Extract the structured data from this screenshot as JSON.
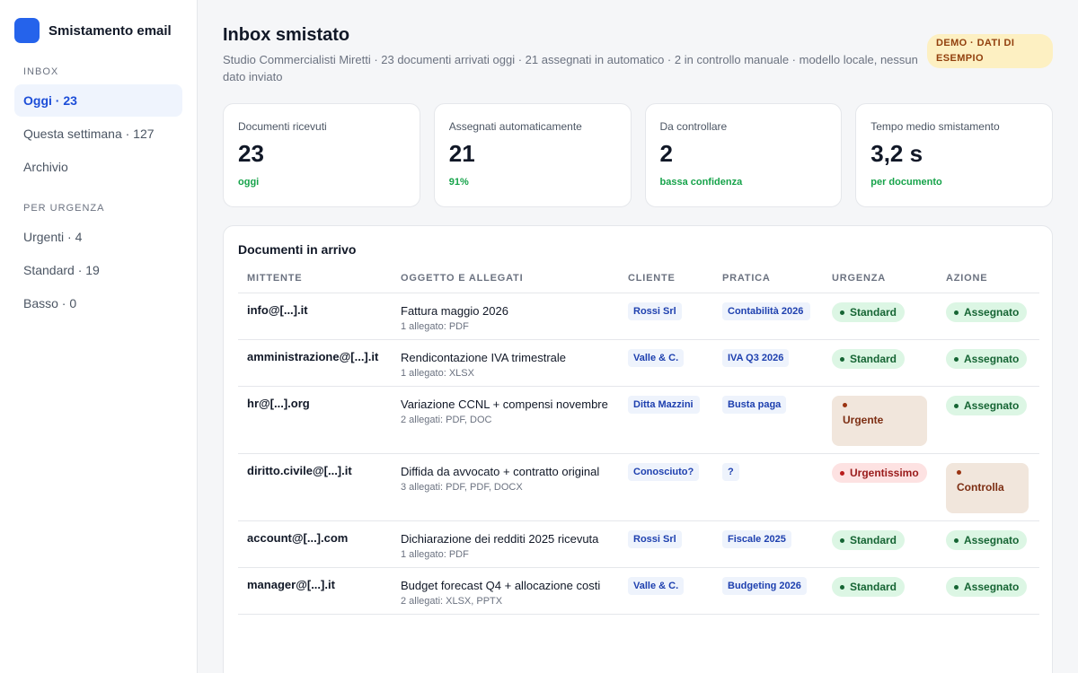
{
  "sidebar": {
    "brand": "Smistamento email",
    "section_inbox": "INBOX",
    "inbox_items": [
      {
        "label": "Oggi · 23"
      },
      {
        "label": "Questa settimana · 127"
      },
      {
        "label": "Archivio"
      }
    ],
    "section_urgency": "PER URGENZA",
    "urgency_items": [
      {
        "label": "Urgenti · 4"
      },
      {
        "label": "Standard · 19"
      },
      {
        "label": "Basso · 0"
      }
    ]
  },
  "header": {
    "title": "Inbox smistato",
    "subtitle": "Studio Commercialisti Miretti · 23 documenti arrivati oggi · 21 assegnati in automatico · 2 in controllo manuale · modello locale, nessun dato inviato",
    "badge": "DEMO · DATI DI ESEMPIO"
  },
  "stats": [
    {
      "label": "Documenti ricevuti",
      "value": "23",
      "note": "oggi"
    },
    {
      "label": "Assegnati automaticamente",
      "value": "21",
      "note": "91%"
    },
    {
      "label": "Da controllare",
      "value": "2",
      "note": "bassa confidenza"
    },
    {
      "label": "Tempo medio smistamento",
      "value": "3,2 s",
      "note": "per documento"
    }
  ],
  "table": {
    "title": "Documenti in arrivo",
    "columns": [
      "MITTENTE",
      "OGGETTO E ALLEGATI",
      "CLIENTE",
      "PRATICA",
      "URGENZA",
      "AZIONE"
    ],
    "rows": [
      {
        "sender": "info@[...].it",
        "subject": "Fattura maggio 2026",
        "attachments": "1 allegato: PDF",
        "client": "Rossi Srl",
        "case": "Contabilità 2026",
        "urgency": "Standard",
        "action": "Assegnato"
      },
      {
        "sender": "amministrazione@[...].it",
        "subject": "Rendicontazione IVA trimestrale",
        "attachments": "1 allegato: XLSX",
        "client": "Valle & C.",
        "case": "IVA Q3 2026",
        "urgency": "Standard",
        "action": "Assegnato"
      },
      {
        "sender": "hr@[...].org",
        "subject": "Variazione CCNL + compensi novembre",
        "attachments": "2 allegati: PDF, DOC",
        "client": "Ditta Mazzini",
        "case": "Busta paga",
        "urgency": "Urgente",
        "action": "Assegnato"
      },
      {
        "sender": "diritto.civile@[...].it",
        "subject": "Diffida da avvocato + contratto original",
        "attachments": "3 allegati: PDF, PDF, DOCX",
        "client": "Conosciuto?",
        "case": "?",
        "urgency": "Urgentissimo",
        "action": "Controlla"
      },
      {
        "sender": "account@[...].com",
        "subject": "Dichiarazione dei redditi 2025 ricevuta",
        "attachments": "1 allegato: PDF",
        "client": "Rossi Srl",
        "case": "Fiscale 2025",
        "urgency": "Standard",
        "action": "Assegnato"
      },
      {
        "sender": "manager@[...].it",
        "subject": "Budget forecast Q4 + allocazione costi",
        "attachments": "2 allegati: XLSX, PPTX",
        "client": "Valle & C.",
        "case": "Budgeting 2026",
        "urgency": "Standard",
        "action": "Assegnato"
      }
    ]
  },
  "colors": {
    "accent": "#2563eb",
    "status_green": "#166534",
    "status_red": "#991b1b",
    "status_brown": "#7c2d12"
  }
}
